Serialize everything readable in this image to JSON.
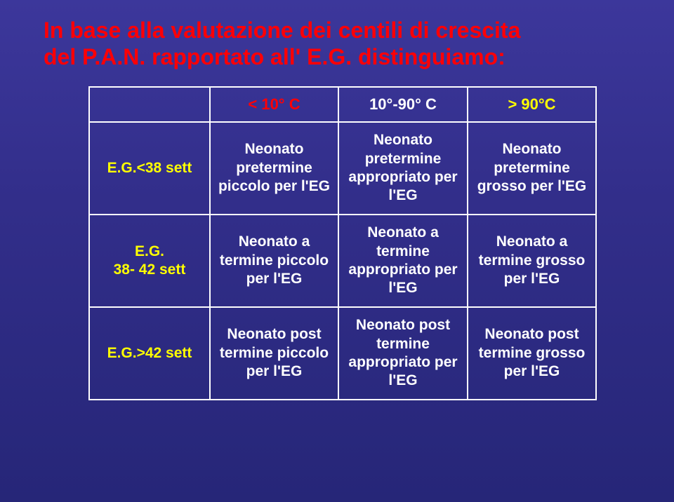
{
  "heading_line1": "In base alla valutazione dei centili di crescita",
  "heading_line2": "del P.A.N. rapportato all' E.G. distinguiamo:",
  "colors": {
    "background_top": "#3c379b",
    "background_bottom": "#262678",
    "heading": "#ff0006",
    "border": "#ffffff",
    "header_col1": "#ff0006",
    "header_col2": "#ffffff",
    "header_col3": "#ffff00",
    "rowlabel": "#ffff00",
    "cell_text": "#ffffff"
  },
  "table": {
    "headers": [
      "",
      "< 10° C",
      "10°-90° C",
      "> 90°C"
    ],
    "rows": [
      {
        "label": "E.G.<38 sett",
        "cells": [
          "Neonato pretermine piccolo per l'EG",
          "Neonato pretermine appropriato per l'EG",
          "Neonato pretermine grosso per l'EG"
        ]
      },
      {
        "label": "E.G.\n38- 42 sett",
        "cells": [
          "Neonato a termine piccolo per l'EG",
          "Neonato a termine appropriato per l'EG",
          "Neonato a termine grosso per l'EG"
        ]
      },
      {
        "label": "E.G.>42 sett",
        "cells": [
          "Neonato post termine piccolo per l'EG",
          "Neonato post termine appropriato per l'EG",
          "Neonato post termine grosso per l'EG"
        ]
      }
    ]
  }
}
